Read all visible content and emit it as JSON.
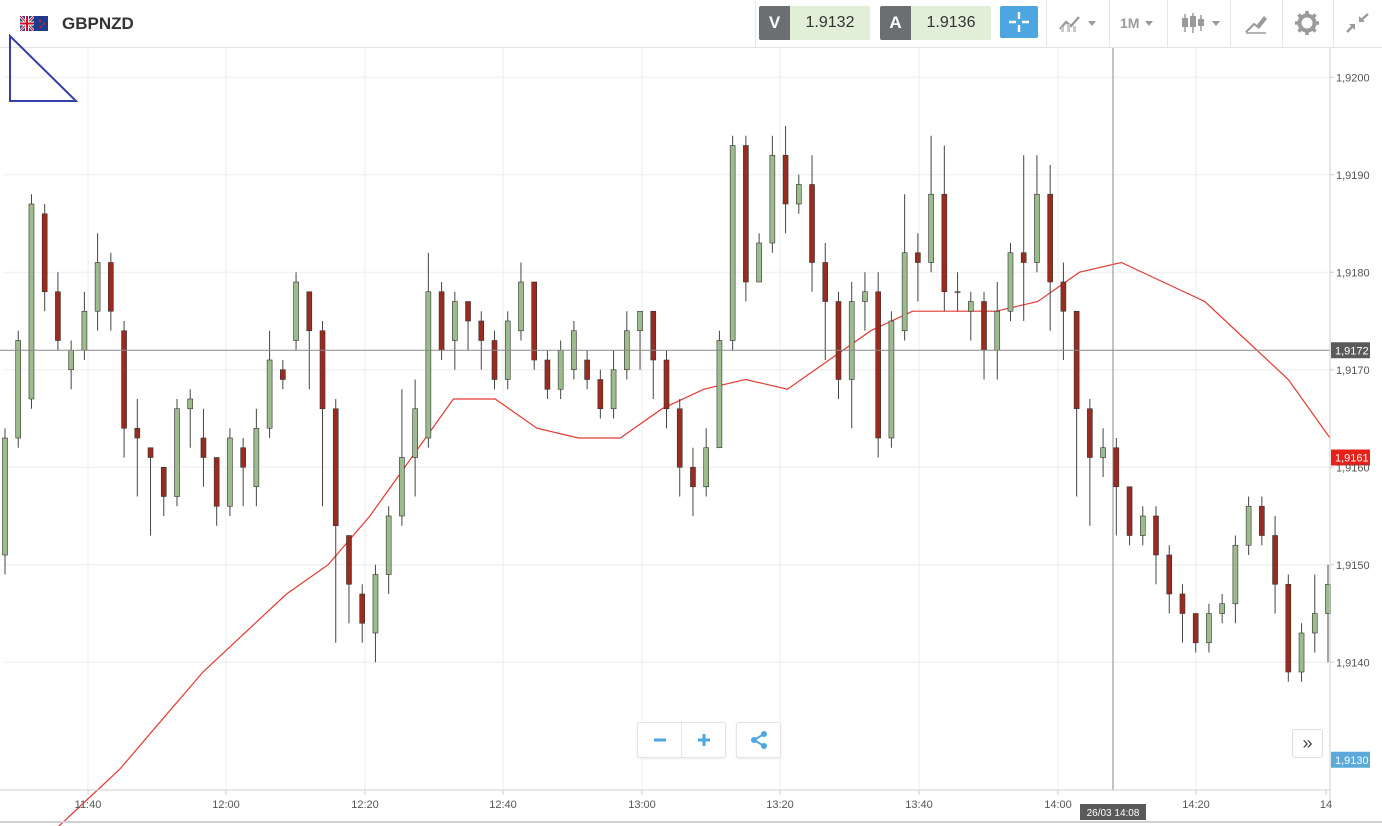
{
  "header": {
    "pair": "GBPNZD",
    "flag_icon": "gb-nz-flag-icon",
    "sell_letter": "V",
    "sell_price": "1.9132",
    "buy_letter": "A",
    "buy_price": "1.9136",
    "timeframe": "1M",
    "icons": [
      "crosshair-icon",
      "chart-type-icon",
      "candlestick-icon",
      "draw-tools-icon",
      "gear-icon",
      "collapse-icon"
    ]
  },
  "colors": {
    "up": "#9dbb8c",
    "down": "#9b2b1f",
    "ma": "#e23b34",
    "last_price_bg": "#e8201a",
    "crosshair_label_bg": "#5a5a5a",
    "accent": "#4ea6e0"
  },
  "chart_data": {
    "type": "candlestick",
    "symbol": "GBPNZD",
    "x_tick_labels": [
      "11:40",
      "12:00",
      "12:20",
      "12:40",
      "13:00",
      "13:20",
      "13:40",
      "14:00",
      "14:20",
      "14"
    ],
    "y_tick_labels": [
      "1,9200",
      "1,9190",
      "1,9180",
      "1,9170",
      "1,9160",
      "1,9150",
      "1,9140",
      "1,9130"
    ],
    "y_range": [
      1.9127,
      1.9203
    ],
    "grid": true,
    "crosshair_price": "1,9172",
    "crosshair_time": "26/03 14:08",
    "last_price": "1,9161",
    "bottom_price_label": "1,9130",
    "moving_average_y": [
      1.9121,
      1.9125,
      1.9129,
      1.9134,
      1.9139,
      1.9143,
      1.9147,
      1.915,
      1.9155,
      1.9161,
      1.9167,
      1.9167,
      1.9164,
      1.9163,
      1.9163,
      1.9166,
      1.9168,
      1.9169,
      1.9168,
      1.9171,
      1.9174,
      1.9176,
      1.9176,
      1.9176,
      1.9177,
      1.918,
      1.9181,
      1.9179,
      1.9177,
      1.9173,
      1.9169,
      1.9163
    ],
    "candles": [
      [
        1.9151,
        1.9163,
        1.9164,
        1.9149
      ],
      [
        1.9163,
        1.9173,
        1.9174,
        1.9162
      ],
      [
        1.9167,
        1.9187,
        1.9188,
        1.9166
      ],
      [
        1.9186,
        1.9178,
        1.9187,
        1.9176
      ],
      [
        1.9178,
        1.9173,
        1.918,
        1.9172
      ],
      [
        1.917,
        1.9172,
        1.9173,
        1.9168
      ],
      [
        1.9172,
        1.9176,
        1.9178,
        1.9171
      ],
      [
        1.9176,
        1.9181,
        1.9184,
        1.9174
      ],
      [
        1.9181,
        1.9176,
        1.9182,
        1.9174
      ],
      [
        1.9174,
        1.9164,
        1.9175,
        1.9161
      ],
      [
        1.9164,
        1.9163,
        1.9167,
        1.9157
      ],
      [
        1.9162,
        1.9161,
        1.9162,
        1.9153
      ],
      [
        1.916,
        1.9157,
        1.916,
        1.9155
      ],
      [
        1.9157,
        1.9166,
        1.9167,
        1.9156
      ],
      [
        1.9166,
        1.9167,
        1.9168,
        1.9162
      ],
      [
        1.9163,
        1.9161,
        1.9166,
        1.9158
      ],
      [
        1.9161,
        1.9156,
        1.9161,
        1.9154
      ],
      [
        1.9156,
        1.9163,
        1.9164,
        1.9155
      ],
      [
        1.9162,
        1.916,
        1.9163,
        1.9156
      ],
      [
        1.9158,
        1.9164,
        1.9166,
        1.9156
      ],
      [
        1.9164,
        1.9171,
        1.9174,
        1.9163
      ],
      [
        1.917,
        1.9169,
        1.9171,
        1.9168
      ],
      [
        1.9173,
        1.9179,
        1.918,
        1.9172
      ],
      [
        1.9178,
        1.9174,
        1.9178,
        1.9168
      ],
      [
        1.9174,
        1.9166,
        1.9175,
        1.9156
      ],
      [
        1.9166,
        1.9154,
        1.9167,
        1.9142
      ],
      [
        1.9153,
        1.9148,
        1.9153,
        1.9144
      ],
      [
        1.9147,
        1.9144,
        1.9148,
        1.9142
      ],
      [
        1.9143,
        1.9149,
        1.915,
        1.914
      ],
      [
        1.9149,
        1.9155,
        1.9156,
        1.9147
      ],
      [
        1.9155,
        1.9161,
        1.9168,
        1.9154
      ],
      [
        1.9161,
        1.9166,
        1.9169,
        1.9157
      ],
      [
        1.9163,
        1.9178,
        1.9182,
        1.9162
      ],
      [
        1.9178,
        1.9172,
        1.9179,
        1.9171
      ],
      [
        1.9173,
        1.9177,
        1.9178,
        1.917
      ],
      [
        1.9177,
        1.9175,
        1.9177,
        1.9172
      ],
      [
        1.9175,
        1.9173,
        1.9176,
        1.917
      ],
      [
        1.9173,
        1.9169,
        1.9174,
        1.9168
      ],
      [
        1.9169,
        1.9175,
        1.9176,
        1.9168
      ],
      [
        1.9174,
        1.9179,
        1.9181,
        1.9173
      ],
      [
        1.9179,
        1.9171,
        1.9179,
        1.917
      ],
      [
        1.9171,
        1.9168,
        1.9172,
        1.9167
      ],
      [
        1.9168,
        1.9172,
        1.9173,
        1.9167
      ],
      [
        1.917,
        1.9174,
        1.9175,
        1.9169
      ],
      [
        1.9171,
        1.9169,
        1.9172,
        1.9168
      ],
      [
        1.9169,
        1.9166,
        1.917,
        1.9165
      ],
      [
        1.9166,
        1.917,
        1.9172,
        1.9165
      ],
      [
        1.917,
        1.9174,
        1.9176,
        1.9169
      ],
      [
        1.9174,
        1.9176,
        1.9176,
        1.917
      ],
      [
        1.9176,
        1.9171,
        1.9176,
        1.9167
      ],
      [
        1.9171,
        1.9166,
        1.9172,
        1.9164
      ],
      [
        1.9166,
        1.916,
        1.9167,
        1.9157
      ],
      [
        1.916,
        1.9158,
        1.9162,
        1.9155
      ],
      [
        1.9158,
        1.9162,
        1.9164,
        1.9157
      ],
      [
        1.9162,
        1.9173,
        1.9174,
        1.9162
      ],
      [
        1.9173,
        1.9193,
        1.9194,
        1.9172
      ],
      [
        1.9193,
        1.9179,
        1.9194,
        1.9177
      ],
      [
        1.9179,
        1.9183,
        1.9184,
        1.9181
      ],
      [
        1.9183,
        1.9192,
        1.9194,
        1.9182
      ],
      [
        1.9192,
        1.9187,
        1.9195,
        1.9184
      ],
      [
        1.9187,
        1.9189,
        1.919,
        1.9186
      ],
      [
        1.9189,
        1.9181,
        1.9192,
        1.9178
      ],
      [
        1.9181,
        1.9177,
        1.9183,
        1.9171
      ],
      [
        1.9177,
        1.9169,
        1.9178,
        1.9167
      ],
      [
        1.9169,
        1.9177,
        1.9179,
        1.9164
      ],
      [
        1.9177,
        1.9178,
        1.918,
        1.9174
      ],
      [
        1.9178,
        1.9163,
        1.918,
        1.9161
      ],
      [
        1.9163,
        1.9175,
        1.9176,
        1.9162
      ],
      [
        1.9174,
        1.9182,
        1.9188,
        1.9173
      ],
      [
        1.9182,
        1.9181,
        1.9184,
        1.9177
      ],
      [
        1.9181,
        1.9188,
        1.9194,
        1.918
      ],
      [
        1.9188,
        1.9178,
        1.9193,
        1.9176
      ],
      [
        1.9178,
        1.9178,
        1.918,
        1.9176
      ],
      [
        1.9176,
        1.9177,
        1.9178,
        1.9173
      ],
      [
        1.9177,
        1.9172,
        1.9178,
        1.9169
      ],
      [
        1.9172,
        1.9176,
        1.9179,
        1.9169
      ],
      [
        1.9176,
        1.9182,
        1.9183,
        1.9175
      ],
      [
        1.9182,
        1.9181,
        1.9192,
        1.9175
      ],
      [
        1.9181,
        1.9188,
        1.9192,
        1.918
      ],
      [
        1.9188,
        1.9179,
        1.9191,
        1.9174
      ],
      [
        1.9179,
        1.9176,
        1.9181,
        1.9171
      ],
      [
        1.9176,
        1.9166,
        1.9176,
        1.9157
      ],
      [
        1.9166,
        1.9161,
        1.9167,
        1.9154
      ],
      [
        1.9161,
        1.9162,
        1.9164,
        1.9159
      ],
      [
        1.9162,
        1.9158,
        1.9163,
        1.9153
      ],
      [
        1.9158,
        1.9153,
        1.9158,
        1.9152
      ],
      [
        1.9153,
        1.9155,
        1.9156,
        1.9152
      ],
      [
        1.9155,
        1.9151,
        1.9156,
        1.9148
      ],
      [
        1.9151,
        1.9147,
        1.9152,
        1.9145
      ],
      [
        1.9147,
        1.9145,
        1.9148,
        1.9142
      ],
      [
        1.9145,
        1.9142,
        1.9145,
        1.9141
      ],
      [
        1.9142,
        1.9145,
        1.9146,
        1.9141
      ],
      [
        1.9145,
        1.9146,
        1.9147,
        1.9144
      ],
      [
        1.9146,
        1.9152,
        1.9153,
        1.9144
      ],
      [
        1.9152,
        1.9156,
        1.9157,
        1.9151
      ],
      [
        1.9156,
        1.9153,
        1.9157,
        1.9152
      ],
      [
        1.9153,
        1.9148,
        1.9155,
        1.9145
      ],
      [
        1.9148,
        1.9139,
        1.9149,
        1.9138
      ],
      [
        1.9139,
        1.9143,
        1.9144,
        1.9138
      ],
      [
        1.9143,
        1.9145,
        1.9149,
        1.9141
      ],
      [
        1.9145,
        1.9148,
        1.915,
        1.914
      ]
    ]
  }
}
